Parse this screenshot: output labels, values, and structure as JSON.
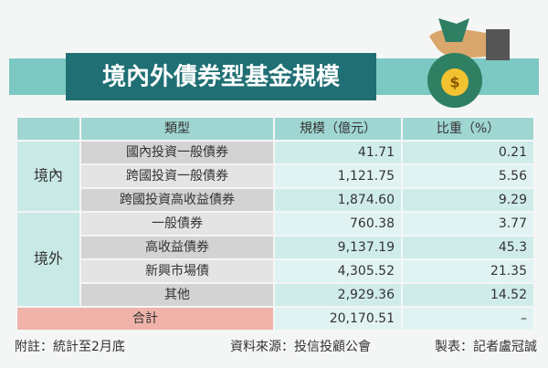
{
  "title": "境內外債券型基金規模",
  "table": {
    "header": [
      "類型",
      "規模（億元）",
      "比重（%）"
    ],
    "groups": [
      {
        "label": "境內",
        "rows": [
          [
            "國內投資一般債券",
            "41.71",
            "0.21"
          ],
          [
            "跨國投資一般債券",
            "1,121.75",
            "5.56"
          ],
          [
            "跨國投資高收益債券",
            "1,874.60",
            "9.29"
          ]
        ]
      },
      {
        "label": "境外",
        "rows": [
          [
            "一般債券",
            "760.38",
            "3.77"
          ],
          [
            "高收益債券",
            "9,137.19",
            "45.3"
          ],
          [
            "新興市場債",
            "4,305.52",
            "21.35"
          ],
          [
            "其他",
            "2,929.36",
            "14.52"
          ]
        ]
      }
    ],
    "total": [
      "合計",
      "20,170.51",
      "–"
    ]
  },
  "footer": {
    "note": "附註：統計至2月底",
    "source": "資料來源：投信投顧公會",
    "maker": "製表：記者盧冠誠"
  }
}
